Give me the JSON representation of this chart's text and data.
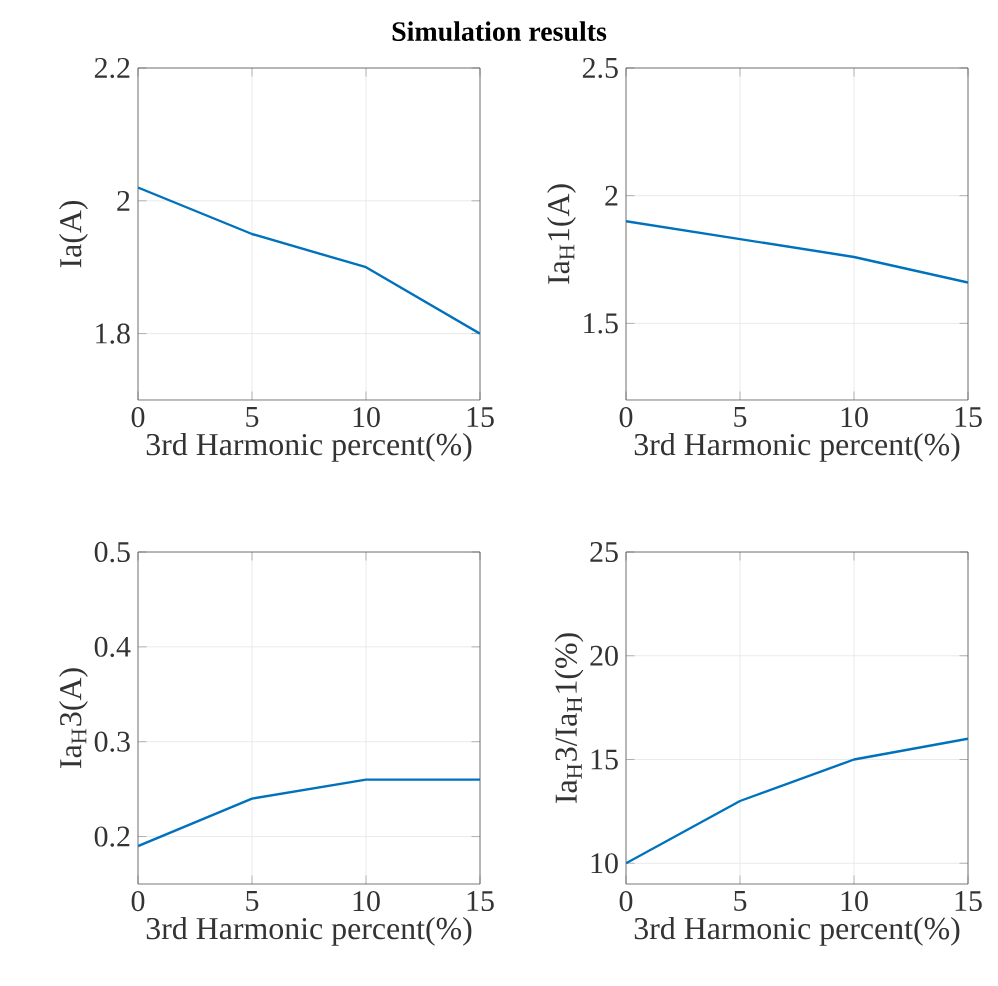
{
  "chart_data": [
    {
      "type": "line",
      "title": "Simulation results",
      "x": [
        0,
        5,
        10,
        15
      ],
      "values": [
        2.02,
        1.95,
        1.9,
        1.8
      ],
      "color": "#0072bd",
      "xlim": [
        0,
        15
      ],
      "xticks": [
        0,
        5,
        10,
        15
      ],
      "ylim": [
        1.7,
        2.2
      ],
      "yticks": [
        1.8,
        2,
        2.2
      ],
      "xlabel": "3rd Harmonic percent(%)",
      "ylabel": "Ia(A)",
      "grid": true
    },
    {
      "type": "line",
      "x": [
        0,
        5,
        10,
        15
      ],
      "values": [
        1.9,
        1.83,
        1.76,
        1.66
      ],
      "color": "#0072bd",
      "xlim": [
        0,
        15
      ],
      "xticks": [
        0,
        5,
        10,
        15
      ],
      "ylim": [
        1.2,
        2.5
      ],
      "yticks": [
        1.5,
        2,
        2.5
      ],
      "xlabel": "3rd Harmonic percent(%)",
      "ylabel": "Ia$_{H}$1(A)",
      "grid": true
    },
    {
      "type": "line",
      "x": [
        0,
        5,
        10,
        15
      ],
      "values": [
        0.19,
        0.24,
        0.26,
        0.26
      ],
      "color": "#0072bd",
      "xlim": [
        0,
        15
      ],
      "xticks": [
        0,
        5,
        10,
        15
      ],
      "ylim": [
        0.15,
        0.5
      ],
      "yticks": [
        0.2,
        0.3,
        0.4,
        0.5
      ],
      "xlabel": "3rd Harmonic percent(%)",
      "ylabel": "Ia$_{H}$3(A)",
      "grid": true
    },
    {
      "type": "line",
      "x": [
        0,
        5,
        10,
        15
      ],
      "values": [
        10,
        13,
        15,
        16
      ],
      "color": "#0072bd",
      "xlim": [
        0,
        15
      ],
      "xticks": [
        0,
        5,
        10,
        15
      ],
      "ylim": [
        9,
        25
      ],
      "yticks": [
        10,
        15,
        20,
        25
      ],
      "xlabel": "3rd Harmonic percent(%)",
      "ylabel": "Ia$_{H}$3/Ia$_{H}$1(%)",
      "grid": true
    }
  ]
}
